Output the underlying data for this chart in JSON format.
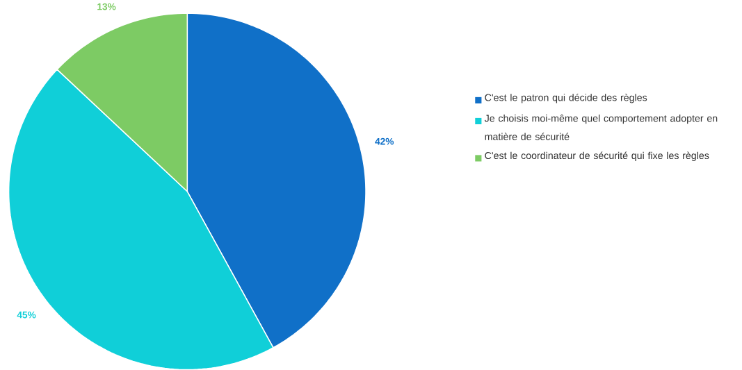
{
  "chart_data": {
    "type": "pie",
    "categories": [
      "C'est le patron qui décide des règles",
      "Je choisis moi-même quel comportement adopter en matière de sécurité",
      "C'est le coordinateur de sécurité qui fixe les règles"
    ],
    "values": [
      42,
      45,
      13
    ],
    "colors": [
      "#1070c8",
      "#10cfd8",
      "#7dcb64"
    ],
    "value_labels": [
      "42%",
      "45%",
      "13%"
    ],
    "legend": "right"
  }
}
